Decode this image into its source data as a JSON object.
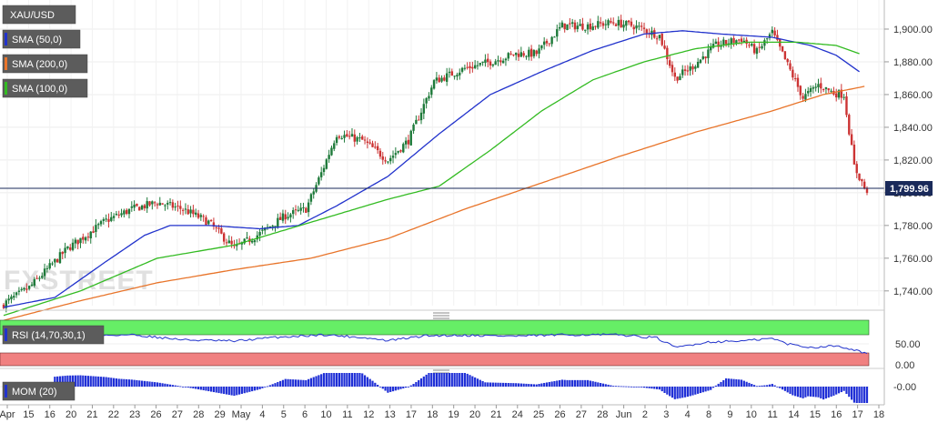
{
  "chart_data": {
    "type": "candlestick",
    "symbol": "XAU/USD",
    "watermark": "FXSTREET",
    "price_axis": {
      "ticks": [
        1740,
        1760,
        1780,
        1800,
        1820,
        1840,
        1860,
        1880,
        1900
      ],
      "tick_labels": [
        "1,740.00",
        "1,760.00",
        "1,780.00",
        "1,800.00",
        "1,820.00",
        "1,840.00",
        "1,860.00",
        "1,880.00",
        "1,900.00"
      ],
      "ylim": [
        1731,
        1915
      ]
    },
    "current_price": 1799.96,
    "current_price_label": "1,799.96",
    "x_axis_labels": [
      "Apr",
      "15",
      "16",
      "20",
      "21",
      "22",
      "23",
      "26",
      "27",
      "28",
      "29",
      "May",
      "4",
      "5",
      "6",
      "10",
      "11",
      "12",
      "13",
      "17",
      "18",
      "19",
      "20",
      "21",
      "24",
      "25",
      "26",
      "27",
      "28",
      "Jun",
      "2",
      "3",
      "4",
      "8",
      "9",
      "10",
      "11",
      "14",
      "15",
      "16",
      "17",
      "18"
    ],
    "key_closes": [
      {
        "t": 0,
        "v": 1732
      },
      {
        "t": 10,
        "v": 1742
      },
      {
        "t": 25,
        "v": 1766
      },
      {
        "t": 40,
        "v": 1783
      },
      {
        "t": 50,
        "v": 1790
      },
      {
        "t": 60,
        "v": 1794
      },
      {
        "t": 70,
        "v": 1790
      },
      {
        "t": 80,
        "v": 1782
      },
      {
        "t": 90,
        "v": 1766
      },
      {
        "t": 100,
        "v": 1775
      },
      {
        "t": 110,
        "v": 1786
      },
      {
        "t": 118,
        "v": 1790
      },
      {
        "t": 124,
        "v": 1812
      },
      {
        "t": 130,
        "v": 1836
      },
      {
        "t": 140,
        "v": 1832
      },
      {
        "t": 150,
        "v": 1820
      },
      {
        "t": 158,
        "v": 1832
      },
      {
        "t": 168,
        "v": 1868
      },
      {
        "t": 180,
        "v": 1876
      },
      {
        "t": 190,
        "v": 1880
      },
      {
        "t": 200,
        "v": 1885
      },
      {
        "t": 208,
        "v": 1885
      },
      {
        "t": 218,
        "v": 1902
      },
      {
        "t": 228,
        "v": 1902
      },
      {
        "t": 238,
        "v": 1904
      },
      {
        "t": 246,
        "v": 1902
      },
      {
        "t": 256,
        "v": 1896
      },
      {
        "t": 262,
        "v": 1870
      },
      {
        "t": 268,
        "v": 1876
      },
      {
        "t": 278,
        "v": 1890
      },
      {
        "t": 288,
        "v": 1894
      },
      {
        "t": 294,
        "v": 1886
      },
      {
        "t": 300,
        "v": 1898
      },
      {
        "t": 306,
        "v": 1878
      },
      {
        "t": 312,
        "v": 1858
      },
      {
        "t": 318,
        "v": 1866
      },
      {
        "t": 324,
        "v": 1861
      },
      {
        "t": 328,
        "v": 1860
      },
      {
        "t": 332,
        "v": 1816
      },
      {
        "t": 337,
        "v": 1800
      }
    ],
    "series": [
      {
        "name": "SMA (50,0)",
        "color": "#2233cc",
        "values": [
          {
            "t": 0,
            "v": 1730
          },
          {
            "t": 20,
            "v": 1736
          },
          {
            "t": 40,
            "v": 1758
          },
          {
            "t": 55,
            "v": 1774
          },
          {
            "t": 65,
            "v": 1780
          },
          {
            "t": 80,
            "v": 1780
          },
          {
            "t": 100,
            "v": 1778
          },
          {
            "t": 115,
            "v": 1780
          },
          {
            "t": 130,
            "v": 1792
          },
          {
            "t": 150,
            "v": 1810
          },
          {
            "t": 170,
            "v": 1836
          },
          {
            "t": 190,
            "v": 1860
          },
          {
            "t": 210,
            "v": 1874
          },
          {
            "t": 230,
            "v": 1887
          },
          {
            "t": 250,
            "v": 1897
          },
          {
            "t": 265,
            "v": 1899
          },
          {
            "t": 280,
            "v": 1897
          },
          {
            "t": 300,
            "v": 1895
          },
          {
            "t": 315,
            "v": 1890
          },
          {
            "t": 325,
            "v": 1884
          },
          {
            "t": 334,
            "v": 1874
          }
        ]
      },
      {
        "name": "SMA (200,0)",
        "color": "#e8742a",
        "values": [
          {
            "t": 0,
            "v": 1722
          },
          {
            "t": 30,
            "v": 1734
          },
          {
            "t": 60,
            "v": 1745
          },
          {
            "t": 90,
            "v": 1753
          },
          {
            "t": 120,
            "v": 1760
          },
          {
            "t": 150,
            "v": 1772
          },
          {
            "t": 180,
            "v": 1790
          },
          {
            "t": 210,
            "v": 1806
          },
          {
            "t": 240,
            "v": 1822
          },
          {
            "t": 270,
            "v": 1837
          },
          {
            "t": 300,
            "v": 1850
          },
          {
            "t": 320,
            "v": 1860
          },
          {
            "t": 336,
            "v": 1865
          }
        ]
      },
      {
        "name": "SMA (100,0)",
        "color": "#33bb22",
        "values": [
          {
            "t": 0,
            "v": 1725
          },
          {
            "t": 30,
            "v": 1740
          },
          {
            "t": 60,
            "v": 1760
          },
          {
            "t": 90,
            "v": 1768
          },
          {
            "t": 120,
            "v": 1782
          },
          {
            "t": 150,
            "v": 1796
          },
          {
            "t": 170,
            "v": 1804
          },
          {
            "t": 190,
            "v": 1826
          },
          {
            "t": 210,
            "v": 1850
          },
          {
            "t": 230,
            "v": 1869
          },
          {
            "t": 250,
            "v": 1880
          },
          {
            "t": 270,
            "v": 1888
          },
          {
            "t": 290,
            "v": 1892
          },
          {
            "t": 310,
            "v": 1892
          },
          {
            "t": 325,
            "v": 1890
          },
          {
            "t": 334,
            "v": 1885
          }
        ]
      }
    ],
    "rsi": {
      "name": "RSI (14,70,30,1)",
      "overbought": 70,
      "oversold": 30,
      "ticks": [
        "50.00",
        "0.00"
      ],
      "ylim": [
        0,
        100
      ],
      "values": [
        {
          "t": 0,
          "v": 62
        },
        {
          "t": 30,
          "v": 66
        },
        {
          "t": 50,
          "v": 68
        },
        {
          "t": 70,
          "v": 57
        },
        {
          "t": 90,
          "v": 54
        },
        {
          "t": 105,
          "v": 62
        },
        {
          "t": 125,
          "v": 68
        },
        {
          "t": 140,
          "v": 62
        },
        {
          "t": 150,
          "v": 55
        },
        {
          "t": 165,
          "v": 66
        },
        {
          "t": 180,
          "v": 67
        },
        {
          "t": 200,
          "v": 65
        },
        {
          "t": 220,
          "v": 68
        },
        {
          "t": 240,
          "v": 68
        },
        {
          "t": 255,
          "v": 61
        },
        {
          "t": 262,
          "v": 40
        },
        {
          "t": 275,
          "v": 52
        },
        {
          "t": 290,
          "v": 55
        },
        {
          "t": 300,
          "v": 60
        },
        {
          "t": 306,
          "v": 48
        },
        {
          "t": 315,
          "v": 40
        },
        {
          "t": 325,
          "v": 44
        },
        {
          "t": 330,
          "v": 38
        },
        {
          "t": 337,
          "v": 27
        }
      ]
    },
    "momentum": {
      "name": "MOM (20)",
      "ticks": [
        "-0.00"
      ],
      "ylim": [
        -30,
        40
      ]
    },
    "colors": {
      "bull": "#1e7a3a",
      "bear": "#cc3333",
      "overbought_zone": "#66ee66",
      "oversold_zone": "#f08080"
    }
  }
}
